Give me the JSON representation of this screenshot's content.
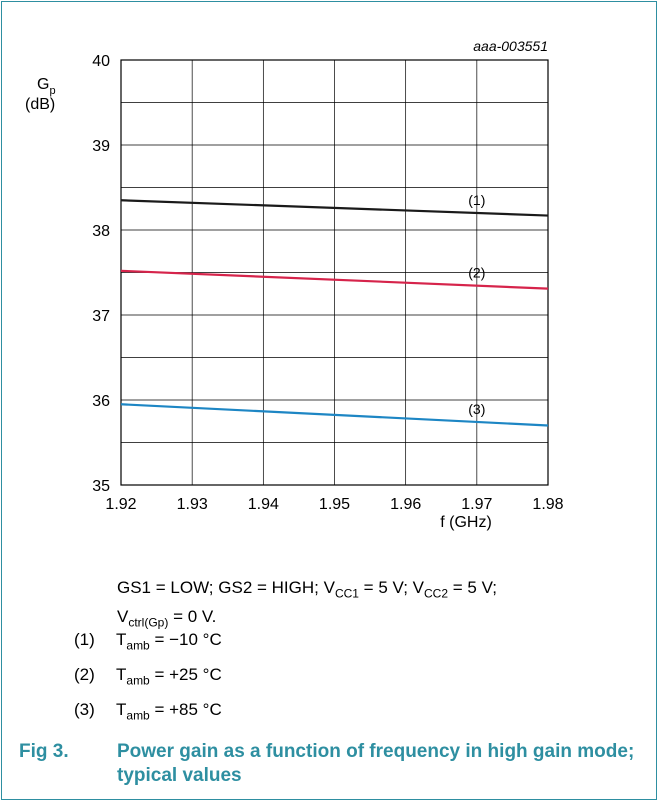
{
  "figure": {
    "label": "Fig 3.",
    "title": "Power gain as a function of frequency in high gain mode; typical values"
  },
  "chart_data": {
    "type": "line",
    "doc_code": "aaa-003551",
    "ylabel": {
      "main": "G",
      "sub": "p",
      "unit": "(dB)"
    },
    "xlabel": "f (GHz)",
    "xlim": [
      1.92,
      1.98
    ],
    "ylim": [
      35,
      40
    ],
    "x_ticks": [
      "1.92",
      "1.93",
      "1.94",
      "1.95",
      "1.96",
      "1.97",
      "1.98"
    ],
    "y_ticks": [
      "35",
      "36",
      "37",
      "38",
      "39",
      "40"
    ],
    "grid": true,
    "series": [
      {
        "name": "(1)",
        "color": "#1a1a1a",
        "x": [
          1.92,
          1.98
        ],
        "y": [
          38.35,
          38.17
        ]
      },
      {
        "name": "(2)",
        "color": "#d6244b",
        "x": [
          1.92,
          1.98
        ],
        "y": [
          37.52,
          37.31
        ]
      },
      {
        "name": "(3)",
        "color": "#1d86c4",
        "x": [
          1.92,
          1.98
        ],
        "y": [
          35.95,
          35.7
        ]
      }
    ]
  },
  "conditions": {
    "line1_a": "GS1 = LOW; GS2 = HIGH; V",
    "line1_sub1": "CC1",
    "line1_b": " = 5 V; V",
    "line1_sub2": "CC2",
    "line1_c": " = 5 V;",
    "line2_a": "V",
    "line2_sub": "ctrl(Gp)",
    "line2_b": " = 0 V."
  },
  "notes": [
    {
      "num": "(1)",
      "prefix": "T",
      "sub": "amb",
      "text": " = −10 °C"
    },
    {
      "num": "(2)",
      "prefix": "T",
      "sub": "amb",
      "text": " = +25 °C"
    },
    {
      "num": "(3)",
      "prefix": "T",
      "sub": "amb",
      "text": " = +85 °C"
    }
  ]
}
